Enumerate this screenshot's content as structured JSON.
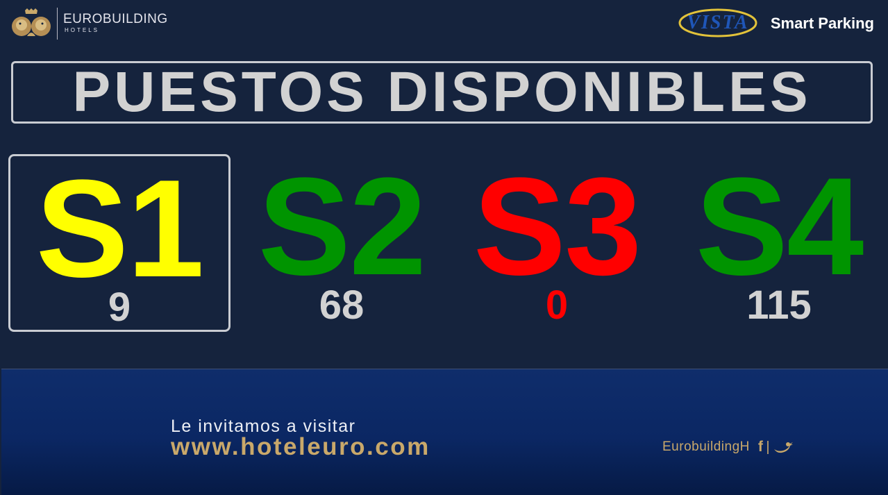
{
  "header": {
    "brand_name": "EUROBUILDING",
    "brand_sub": "HOTELS",
    "vista_logo_text": "VISTA",
    "product_name": "Smart Parking"
  },
  "title": "PUESTOS DISPONIBLES",
  "sectors": [
    {
      "label": "S1",
      "count": "9",
      "label_color": "#ffff00",
      "count_color": "#d2d2d2",
      "selected": true
    },
    {
      "label": "S2",
      "count": "68",
      "label_color": "#009400",
      "count_color": "#d2d2d2",
      "selected": false
    },
    {
      "label": "S3",
      "count": "0",
      "label_color": "#ff0000",
      "count_color": "#ff0000",
      "selected": false
    },
    {
      "label": "S4",
      "count": "115",
      "label_color": "#009400",
      "count_color": "#d2d2d2",
      "selected": false
    }
  ],
  "banner": {
    "invite_text": "Le invitamos a visitar",
    "url": "www.hoteleuro.com",
    "social_handle": "EurobuildingH",
    "facebook_glyph": "f",
    "separator": "|",
    "twitter_icon": "twitter-bird-icon"
  },
  "colors": {
    "background": "#15233d",
    "gold": "#c9a86a",
    "available": "#009400",
    "full": "#ff0000",
    "selected": "#ffff00"
  }
}
